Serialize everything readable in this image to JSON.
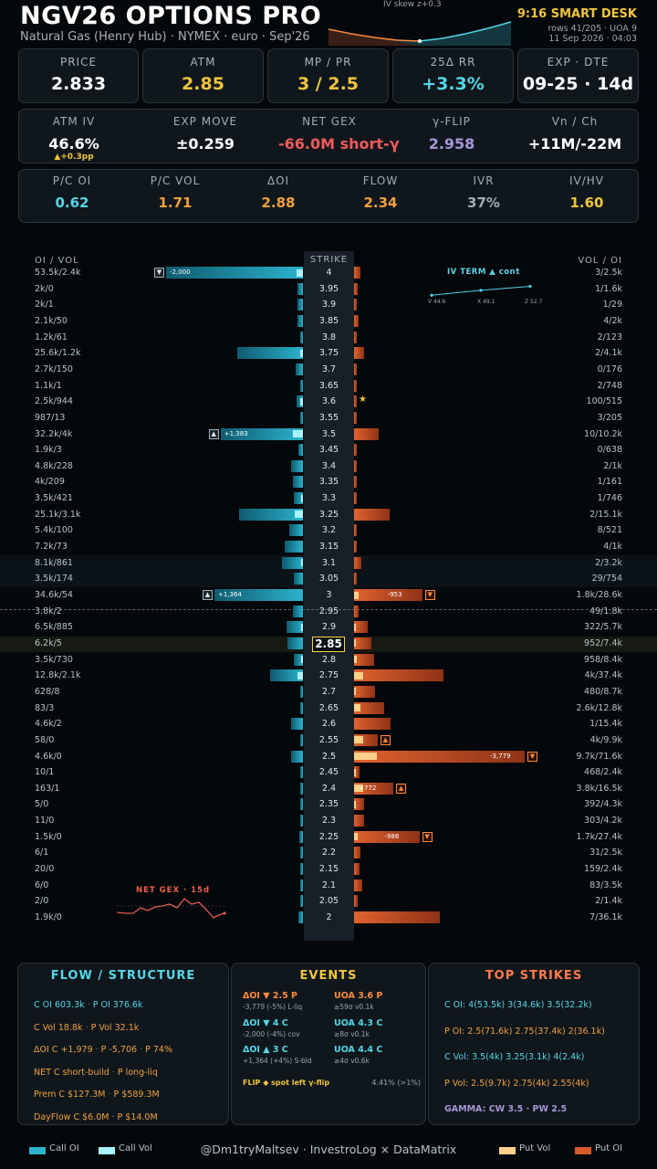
{
  "header": {
    "title": "NGV26 OPTIONS PRO",
    "subtitle": "Natural Gas (Henry Hub) · NYMEX · euro · Sep'26",
    "skew_label": "IV skew   z+0.3",
    "desk_title": "9:16 SMART DESK",
    "rows_info": "rows 41/205 · UOA 9",
    "datetime": "11 Sep 2026 · 04:03"
  },
  "kpi_row1": [
    {
      "label": "PRICE",
      "value": "2.833",
      "color": "#ffffff"
    },
    {
      "label": "ATM",
      "value": "2.85",
      "color": "#f2c53d"
    },
    {
      "label": "MP / PR",
      "value": "3 / 2.5",
      "color": "#f2c53d"
    },
    {
      "label": "25Δ RR",
      "value": "+3.3%",
      "color": "#55d6e6"
    },
    {
      "label": "EXP · DTE",
      "value": "09-25 · 14d",
      "color": "#ffffff"
    }
  ],
  "kpi_row2": [
    {
      "label": "ATM IV",
      "value": "46.6%",
      "sub": "▲+0.3pp",
      "color": "#ffffff"
    },
    {
      "label": "EXP MOVE",
      "value": "±0.259",
      "color": "#ffffff"
    },
    {
      "label": "NET GEX",
      "value": "-66.0M short-γ",
      "color": "#f05a5a"
    },
    {
      "label": "γ-FLIP",
      "value": "2.958",
      "color": "#a796d8"
    },
    {
      "label": "Vn / Ch",
      "value": "+11M/-22M",
      "color": "#ffffff"
    }
  ],
  "kpi_row3": [
    {
      "label": "P/C OI",
      "value": "0.62",
      "color": "#55d6e6"
    },
    {
      "label": "P/C VOL",
      "value": "1.71",
      "color": "#f2a03d"
    },
    {
      "label": "ΔOI",
      "value": "2.88",
      "color": "#f2a03d"
    },
    {
      "label": "FLOW",
      "value": "2.34",
      "color": "#f2a03d"
    },
    {
      "label": "IVR",
      "value": "37%",
      "color": "#a3adb5"
    },
    {
      "label": "IV/HV",
      "value": "1.60",
      "color": "#f2c53d"
    }
  ],
  "ladder": {
    "left_header": "OI / VOL",
    "strike_header": "STRIKE",
    "right_header": "VOL / OI",
    "atm_strike": "2.85",
    "rows": [
      {
        "strike": "4",
        "call": "53.5k/2.4k",
        "put": "3/2.5k",
        "c_oi": 53.5,
        "c_vol": 2.4,
        "p_oi": 2.5,
        "p_vol": 0.003,
        "c_flag": "▼",
        "c_note": "-2,000"
      },
      {
        "strike": "3.95",
        "call": "2k/0",
        "put": "1/1.6k",
        "c_oi": 2,
        "c_vol": 0,
        "p_oi": 1.6,
        "p_vol": 0.001
      },
      {
        "strike": "3.9",
        "call": "2k/1",
        "put": "1/29",
        "c_oi": 2,
        "c_vol": 0.001,
        "p_oi": 0.03,
        "p_vol": 0.001
      },
      {
        "strike": "3.85",
        "call": "2.1k/50",
        "put": "4/2k",
        "c_oi": 2.1,
        "c_vol": 0.05,
        "p_oi": 2,
        "p_vol": 0.004
      },
      {
        "strike": "3.8",
        "call": "1.2k/61",
        "put": "2/123",
        "c_oi": 1.2,
        "c_vol": 0.06,
        "p_oi": 0.12,
        "p_vol": 0.002
      },
      {
        "strike": "3.75",
        "call": "25.6k/1.2k",
        "put": "2/4.1k",
        "c_oi": 25.6,
        "c_vol": 1.2,
        "p_oi": 4.1,
        "p_vol": 0.002
      },
      {
        "strike": "3.7",
        "call": "2.7k/150",
        "put": "0/176",
        "c_oi": 2.7,
        "c_vol": 0.15,
        "p_oi": 0.18,
        "p_vol": 0
      },
      {
        "strike": "3.65",
        "call": "1.1k/1",
        "put": "2/748",
        "c_oi": 1.1,
        "c_vol": 0.001,
        "p_oi": 0.75,
        "p_vol": 0.002
      },
      {
        "strike": "3.6",
        "call": "2.5k/944",
        "put": "100/515",
        "c_oi": 2.5,
        "c_vol": 0.94,
        "p_oi": 0.52,
        "p_vol": 0.1,
        "star": "★"
      },
      {
        "strike": "3.55",
        "call": "987/13",
        "put": "3/205",
        "c_oi": 0.99,
        "c_vol": 0.01,
        "p_oi": 0.21,
        "p_vol": 0.003
      },
      {
        "strike": "3.5",
        "call": "32.2k/4k",
        "put": "10/10.2k",
        "c_oi": 32.2,
        "c_vol": 4,
        "p_oi": 10.2,
        "p_vol": 0.01,
        "c_flag": "▲",
        "c_note": "+1,383"
      },
      {
        "strike": "3.45",
        "call": "1.9k/3",
        "put": "0/638",
        "c_oi": 1.9,
        "c_vol": 0.003,
        "p_oi": 0.64,
        "p_vol": 0
      },
      {
        "strike": "3.4",
        "call": "4.8k/228",
        "put": "2/1k",
        "c_oi": 4.8,
        "c_vol": 0.23,
        "p_oi": 1,
        "p_vol": 0.002
      },
      {
        "strike": "3.35",
        "call": "4k/209",
        "put": "1/161",
        "c_oi": 4,
        "c_vol": 0.21,
        "p_oi": 0.16,
        "p_vol": 0.001
      },
      {
        "strike": "3.3",
        "call": "3.5k/421",
        "put": "1/746",
        "c_oi": 3.5,
        "c_vol": 0.42,
        "p_oi": 0.75,
        "p_vol": 0.001
      },
      {
        "strike": "3.25",
        "call": "25.1k/3.1k",
        "put": "2/15.1k",
        "c_oi": 25.1,
        "c_vol": 3.1,
        "p_oi": 15.1,
        "p_vol": 0.002
      },
      {
        "strike": "3.2",
        "call": "5.4k/100",
        "put": "8/521",
        "c_oi": 5.4,
        "c_vol": 0.1,
        "p_oi": 0.52,
        "p_vol": 0.008
      },
      {
        "strike": "3.15",
        "call": "7.2k/73",
        "put": "4/1k",
        "c_oi": 7.2,
        "c_vol": 0.07,
        "p_oi": 1,
        "p_vol": 0.004
      },
      {
        "strike": "3.1",
        "call": "8.1k/861",
        "put": "2/3.2k",
        "c_oi": 8.1,
        "c_vol": 0.86,
        "p_oi": 3.2,
        "p_vol": 0.002
      },
      {
        "strike": "3.05",
        "call": "3.5k/174",
        "put": "29/754",
        "c_oi": 3.5,
        "c_vol": 0.17,
        "p_oi": 0.75,
        "p_vol": 0.03
      },
      {
        "strike": "3",
        "call": "34.6k/54",
        "put": "1.8k/28.6k",
        "c_oi": 34.6,
        "c_vol": 0.05,
        "p_oi": 28.6,
        "p_vol": 1.8,
        "c_flag": "▲",
        "c_note": "+1,364",
        "p_flag": "▼",
        "p_note": "-953"
      },
      {
        "strike": "2.95",
        "call": "3.8k/2",
        "put": "49/1.8k",
        "c_oi": 3.8,
        "c_vol": 0.002,
        "p_oi": 1.8,
        "p_vol": 0.05
      },
      {
        "strike": "2.9",
        "call": "6.5k/885",
        "put": "322/5.7k",
        "c_oi": 6.5,
        "c_vol": 0.89,
        "p_oi": 5.7,
        "p_vol": 0.32
      },
      {
        "strike": "2.85",
        "call": "6.2k/5",
        "put": "952/7.4k",
        "c_oi": 6.2,
        "c_vol": 0.005,
        "p_oi": 7.4,
        "p_vol": 0.95
      },
      {
        "strike": "2.8",
        "call": "3.5k/730",
        "put": "958/8.4k",
        "c_oi": 3.5,
        "c_vol": 0.73,
        "p_oi": 8.4,
        "p_vol": 0.96
      },
      {
        "strike": "2.75",
        "call": "12.8k/2.1k",
        "put": "4k/37.4k",
        "c_oi": 12.8,
        "c_vol": 2.1,
        "p_oi": 37.4,
        "p_vol": 4
      },
      {
        "strike": "2.7",
        "call": "628/8",
        "put": "480/8.7k",
        "c_oi": 0.63,
        "c_vol": 0.008,
        "p_oi": 8.7,
        "p_vol": 0.48
      },
      {
        "strike": "2.65",
        "call": "83/3",
        "put": "2.6k/12.8k",
        "c_oi": 0.08,
        "c_vol": 0.003,
        "p_oi": 12.8,
        "p_vol": 2.6
      },
      {
        "strike": "2.6",
        "call": "4.6k/2",
        "put": "1/15.4k",
        "c_oi": 4.6,
        "c_vol": 0.002,
        "p_oi": 15.4,
        "p_vol": 0.001
      },
      {
        "strike": "2.55",
        "call": "58/0",
        "put": "4k/9.9k",
        "c_oi": 0.06,
        "c_vol": 0,
        "p_oi": 9.9,
        "p_vol": 4,
        "p_flag": "▲"
      },
      {
        "strike": "2.5",
        "call": "4.6k/0",
        "put": "9.7k/71.6k",
        "c_oi": 4.6,
        "c_vol": 0,
        "p_oi": 71.6,
        "p_vol": 9.7,
        "p_flag": "▼",
        "p_note": "-3,779"
      },
      {
        "strike": "2.45",
        "call": "10/1",
        "put": "468/2.4k",
        "c_oi": 0.01,
        "c_vol": 0.001,
        "p_oi": 2.4,
        "p_vol": 0.47
      },
      {
        "strike": "2.4",
        "call": "163/1",
        "put": "3.8k/16.5k",
        "c_oi": 0.16,
        "c_vol": 0.001,
        "p_oi": 16.5,
        "p_vol": 3.8,
        "p_flag": "▲",
        "p_note": "+772"
      },
      {
        "strike": "2.35",
        "call": "5/0",
        "put": "392/4.3k",
        "c_oi": 0.005,
        "c_vol": 0,
        "p_oi": 4.3,
        "p_vol": 0.39
      },
      {
        "strike": "2.3",
        "call": "11/0",
        "put": "303/4.2k",
        "c_oi": 0.01,
        "c_vol": 0,
        "p_oi": 4.2,
        "p_vol": 0.3
      },
      {
        "strike": "2.25",
        "call": "1.5k/0",
        "put": "1.7k/27.4k",
        "c_oi": 1.5,
        "c_vol": 0,
        "p_oi": 27.4,
        "p_vol": 1.7,
        "p_flag": "▼",
        "p_note": "-986"
      },
      {
        "strike": "2.2",
        "call": "6/1",
        "put": "31/2.5k",
        "c_oi": 0.006,
        "c_vol": 0.001,
        "p_oi": 2.5,
        "p_vol": 0.03
      },
      {
        "strike": "2.15",
        "call": "20/0",
        "put": "159/2.4k",
        "c_oi": 0.02,
        "c_vol": 0,
        "p_oi": 2.4,
        "p_vol": 0.16
      },
      {
        "strike": "2.1",
        "call": "6/0",
        "put": "83/3.5k",
        "c_oi": 0.006,
        "c_vol": 0,
        "p_oi": 3.5,
        "p_vol": 0.08
      },
      {
        "strike": "2.05",
        "call": "2/0",
        "put": "2/1.4k",
        "c_oi": 0.002,
        "c_vol": 0,
        "p_oi": 1.4,
        "p_vol": 0.002
      },
      {
        "strike": "2",
        "call": "1.9k/0",
        "put": "7/36.1k",
        "c_oi": 1.9,
        "c_vol": 0,
        "p_oi": 36.1,
        "p_vol": 0.007
      }
    ],
    "iv_term": {
      "title": "IV TERM   ▲ cont",
      "labels": [
        "V 44.6",
        "X 49.1",
        "Z 52.7"
      ],
      "values": [
        44.6,
        49.1,
        52.7
      ]
    },
    "net_gex_title": "NET GEX · 15d"
  },
  "flow_panel": {
    "title": "FLOW / STRUCTURE",
    "lines": [
      {
        "a": "C OI 603.3k",
        "b": "P OI 376.6k",
        "c": "",
        "color": "#55d6e6"
      },
      {
        "a": "C Vol 18.8k",
        "b": "P Vol 32.1k",
        "c": "",
        "color": "#f2a03d"
      },
      {
        "a": "ΔOI C +1,979",
        "b": "P -5,706",
        "c": "P 74%",
        "color": "#f2a03d"
      },
      {
        "a": "NET  C short-build",
        "b": "P long-liq",
        "c": "",
        "color": "#f2a03d"
      },
      {
        "a": "Prem  C $127.3M",
        "b": "P $589.3M",
        "c": "",
        "color": "#f2a03d"
      },
      {
        "a": "DayFlow  C $6.0M",
        "b": "P $14.0M",
        "c": "",
        "color": "#f2a03d"
      }
    ]
  },
  "events_panel": {
    "title": "EVENTS",
    "left": [
      {
        "a": "ΔOI ▼ 2.5 P",
        "b": "-3,779 (-5%)  L-liq",
        "color": "#ff8a3d"
      },
      {
        "a": "ΔOI ▼ 4 C",
        "b": "-2,000 (-4%)  cov",
        "color": "#55d6e6"
      },
      {
        "a": "ΔOI ▲ 3 C",
        "b": "+1,364 (+4%)  S-bld",
        "color": "#55d6e6"
      }
    ],
    "right": [
      {
        "a": "UOA 3.6 P",
        "b": "≥59σ v0.1k",
        "color": "#ff8a3d"
      },
      {
        "a": "UOA 4.3 C",
        "b": "≥8σ v0.1k",
        "color": "#55d6e6"
      },
      {
        "a": "UOA 4.4 C",
        "b": "≥4σ v0.6k",
        "color": "#55d6e6"
      }
    ],
    "flip_text": "FLIP ◆ spot left γ-flip",
    "flip_value": "4.41% (>1%)"
  },
  "top_strikes_panel": {
    "title": "TOP STRIKES",
    "lines": [
      {
        "text": "C OI: 4(53.5k)  3(34.6k)  3.5(32.2k)",
        "color": "#55d6e6"
      },
      {
        "text": "P OI: 2.5(71.6k)  2.75(37.4k)  2(36.1k)",
        "color": "#f2a03d"
      },
      {
        "text": "C Vol: 3.5(4k)  3.25(3.1k)  4(2.4k)",
        "color": "#55d6e6"
      },
      {
        "text": "P Vol: 2.5(9.7k)  2.75(4k)  2.55(4k)",
        "color": "#f2a03d"
      },
      {
        "text": "GAMMA: CW 3.5 · PW 2.5",
        "color": "#a796d8"
      }
    ]
  },
  "footer": {
    "call_oi": "Call OI",
    "call_vol": "Call Vol",
    "credit": "@Dm1tryMaltsev  ·  InvestroLog × DataMatrix",
    "put_vol": "Put Vol",
    "put_oi": "Put OI"
  },
  "colors": {
    "call": "#2bb3cc",
    "call_vol": "#a8f3ff",
    "put": "#d65a2a",
    "put_vol": "#ffd08a",
    "accent": "#f2c53d"
  }
}
